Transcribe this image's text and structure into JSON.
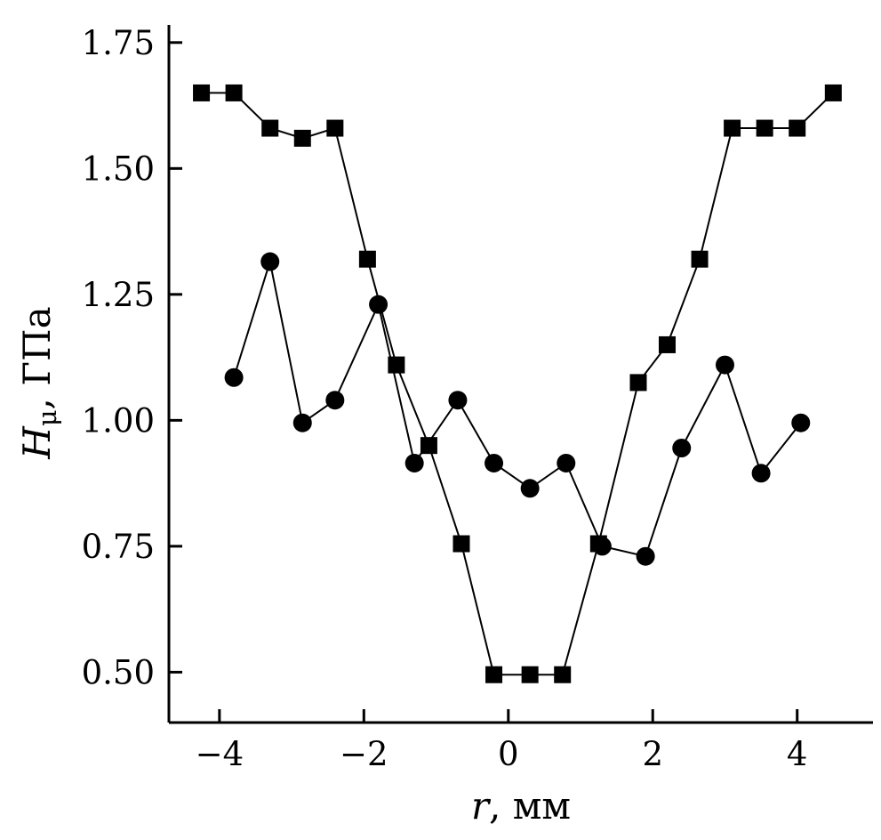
{
  "chart_data": {
    "type": "line",
    "title": "",
    "xlabel": "r, мм",
    "ylabel": "Hμ, ГПа",
    "xlabel_parts": {
      "main": "r",
      "rest": ", мм"
    },
    "ylabel_parts": {
      "main": "H",
      "sub": "μ",
      "rest": ", ГПа"
    },
    "xlim": [
      -4.7,
      5.05
    ],
    "ylim": [
      0.4,
      1.785
    ],
    "x_ticks": {
      "values": [
        -4,
        -2,
        0,
        2,
        4
      ],
      "labels": [
        "−4",
        "−2",
        "0",
        "2",
        "4"
      ]
    },
    "y_ticks": {
      "values": [
        0.5,
        0.75,
        1.0,
        1.25,
        1.5,
        1.75
      ],
      "labels": [
        "0.50",
        "0.75",
        "1.00",
        "1.25",
        "1.50",
        "1.75"
      ]
    },
    "grid": false,
    "legend": "none",
    "line_color": "#000000",
    "marker_color": "#000000",
    "series": [
      {
        "name": "squares",
        "marker": "square",
        "points": [
          [
            -4.25,
            1.65
          ],
          [
            -3.8,
            1.65
          ],
          [
            -3.3,
            1.58
          ],
          [
            -2.85,
            1.56
          ],
          [
            -2.4,
            1.58
          ],
          [
            -1.95,
            1.32
          ],
          [
            -1.55,
            1.11
          ],
          [
            -1.1,
            0.95
          ],
          [
            -0.65,
            0.755
          ],
          [
            -0.2,
            0.495
          ],
          [
            0.3,
            0.495
          ],
          [
            0.75,
            0.495
          ],
          [
            1.25,
            0.755
          ],
          [
            1.8,
            1.075
          ],
          [
            2.2,
            1.15
          ],
          [
            2.65,
            1.32
          ],
          [
            3.1,
            1.58
          ],
          [
            3.55,
            1.58
          ],
          [
            4.0,
            1.58
          ],
          [
            4.5,
            1.65
          ]
        ]
      },
      {
        "name": "circles",
        "marker": "circle",
        "points": [
          [
            -3.8,
            1.085
          ],
          [
            -3.3,
            1.315
          ],
          [
            -2.85,
            0.995
          ],
          [
            -2.4,
            1.04
          ],
          [
            -1.8,
            1.23
          ],
          [
            -1.3,
            0.915
          ],
          [
            -0.7,
            1.04
          ],
          [
            -0.2,
            0.915
          ],
          [
            0.3,
            0.865
          ],
          [
            0.8,
            0.915
          ],
          [
            1.3,
            0.75
          ],
          [
            1.9,
            0.73
          ],
          [
            2.4,
            0.945
          ],
          [
            3.0,
            1.11
          ],
          [
            3.5,
            0.895
          ],
          [
            4.05,
            0.995
          ]
        ]
      }
    ]
  }
}
